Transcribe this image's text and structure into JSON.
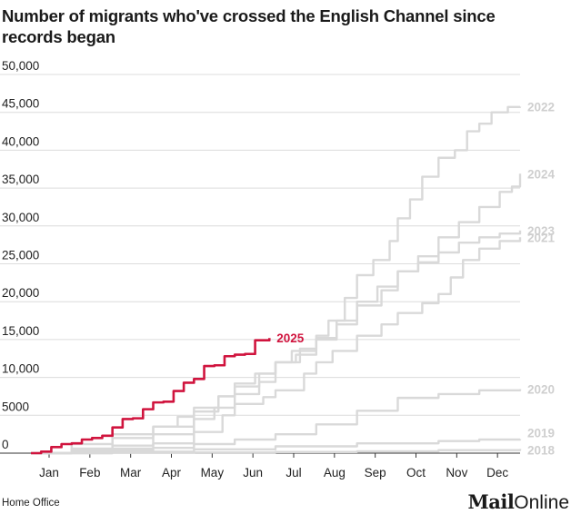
{
  "chart_data": {
    "type": "line",
    "title": "Number of migrants who've crossed the English Channel since records began",
    "xlabel": "",
    "ylabel": "",
    "categories": [
      "Jan",
      "Feb",
      "Mar",
      "Apr",
      "May",
      "Jun",
      "Jul",
      "Aug",
      "Sep",
      "Oct",
      "Nov",
      "Dec"
    ],
    "x_unit": "month index (0 = start of Jan, 12 = end of Dec)",
    "xlim": [
      0,
      12
    ],
    "ylim": [
      0,
      50000
    ],
    "yticks": [
      0,
      5000,
      10000,
      15000,
      20000,
      25000,
      30000,
      35000,
      40000,
      45000,
      50000
    ],
    "ytick_labels": [
      "0",
      "5000",
      "10,000",
      "15,000",
      "20,000",
      "25,000",
      "30,000",
      "35,000",
      "40,000",
      "45,000",
      "50,000"
    ],
    "grid": true,
    "highlight_color": "#d0143e",
    "base_color": "#d9d9d9",
    "series": [
      {
        "name": "2018",
        "label": "2018",
        "highlight": false,
        "x": [
          0,
          2,
          4,
          6,
          8,
          10,
          12
        ],
        "y": [
          0,
          40,
          100,
          150,
          250,
          400,
          550
        ]
      },
      {
        "name": "2019",
        "label": "2019",
        "highlight": false,
        "x": [
          0,
          2,
          4,
          6,
          8,
          10,
          11,
          12
        ],
        "y": [
          0,
          200,
          500,
          900,
          1300,
          1600,
          1800,
          1850
        ]
      },
      {
        "name": "2020",
        "label": "2020",
        "highlight": false,
        "x": [
          0,
          1,
          2,
          3,
          4,
          5,
          6,
          7,
          8,
          9,
          10,
          11,
          12
        ],
        "y": [
          0,
          200,
          400,
          700,
          1200,
          1800,
          2500,
          3800,
          5600,
          7300,
          7800,
          8300,
          8450
        ]
      },
      {
        "name": "2021",
        "label": "2021",
        "highlight": false,
        "x": [
          0,
          1,
          2,
          3,
          4,
          4.7,
          5,
          5.7,
          6,
          6.7,
          7,
          7.4,
          8,
          8.6,
          9,
          9.6,
          10,
          10.3,
          10.6,
          11,
          11.5,
          12
        ],
        "y": [
          0,
          300,
          600,
          1300,
          2800,
          5000,
          6500,
          7400,
          8300,
          10500,
          12000,
          13500,
          15500,
          17000,
          18500,
          19800,
          21000,
          23200,
          25500,
          27000,
          28000,
          28500
        ]
      },
      {
        "name": "2022",
        "label": "2022",
        "highlight": false,
        "x": [
          0,
          1,
          2,
          3,
          4,
          4.5,
          5,
          5.6,
          6,
          6.4,
          7,
          7.3,
          7.7,
          8,
          8.4,
          8.8,
          9,
          9.3,
          9.6,
          10,
          10.4,
          10.7,
          11,
          11.3,
          11.7,
          12
        ],
        "y": [
          0,
          500,
          1000,
          2500,
          4500,
          6000,
          7800,
          9400,
          12000,
          13500,
          15500,
          17500,
          20500,
          23500,
          25500,
          28000,
          31000,
          33500,
          36500,
          39000,
          40000,
          42500,
          43500,
          45000,
          45700,
          45750
        ]
      },
      {
        "name": "2023",
        "label": "2023",
        "highlight": false,
        "x": [
          0,
          1,
          2,
          3,
          3.6,
          4,
          4.6,
          5,
          5.6,
          6,
          6.6,
          7,
          7.5,
          8,
          8.6,
          9,
          9.5,
          10,
          10.5,
          11,
          11.5,
          12
        ],
        "y": [
          0,
          1200,
          2500,
          3500,
          4800,
          6000,
          7500,
          8800,
          10500,
          12000,
          13800,
          15200,
          17000,
          19500,
          21500,
          24000,
          25200,
          26500,
          27800,
          28500,
          29000,
          29400
        ]
      },
      {
        "name": "2024",
        "label": "2024",
        "highlight": false,
        "x": [
          0,
          1,
          2,
          3,
          4,
          4.6,
          5,
          5.5,
          6,
          6.5,
          7,
          7.5,
          8,
          8.5,
          9,
          9.5,
          10,
          10.5,
          11,
          11.5,
          11.8,
          12
        ],
        "y": [
          0,
          600,
          2000,
          3500,
          5500,
          7500,
          9200,
          10500,
          12000,
          13000,
          15000,
          17500,
          20000,
          22000,
          24000,
          26000,
          28500,
          30500,
          32500,
          34500,
          35200,
          36900
        ]
      },
      {
        "name": "2025",
        "label": "2025",
        "highlight": true,
        "x": [
          0,
          0.25,
          0.5,
          0.75,
          1,
          1.25,
          1.5,
          1.75,
          2,
          2.25,
          2.5,
          2.75,
          3,
          3.25,
          3.5,
          3.75,
          4,
          4.25,
          4.5,
          4.75,
          5,
          5.25,
          5.5,
          5.85
        ],
        "y": [
          0,
          200,
          800,
          1200,
          1300,
          1800,
          2000,
          2300,
          3400,
          4500,
          4600,
          5800,
          6700,
          6800,
          8200,
          9300,
          9800,
          11500,
          11600,
          12800,
          13000,
          13100,
          14900,
          15200
        ]
      }
    ]
  },
  "footer": {
    "source": "Home Office",
    "brand_mail": "Mail",
    "brand_online": "Online"
  }
}
